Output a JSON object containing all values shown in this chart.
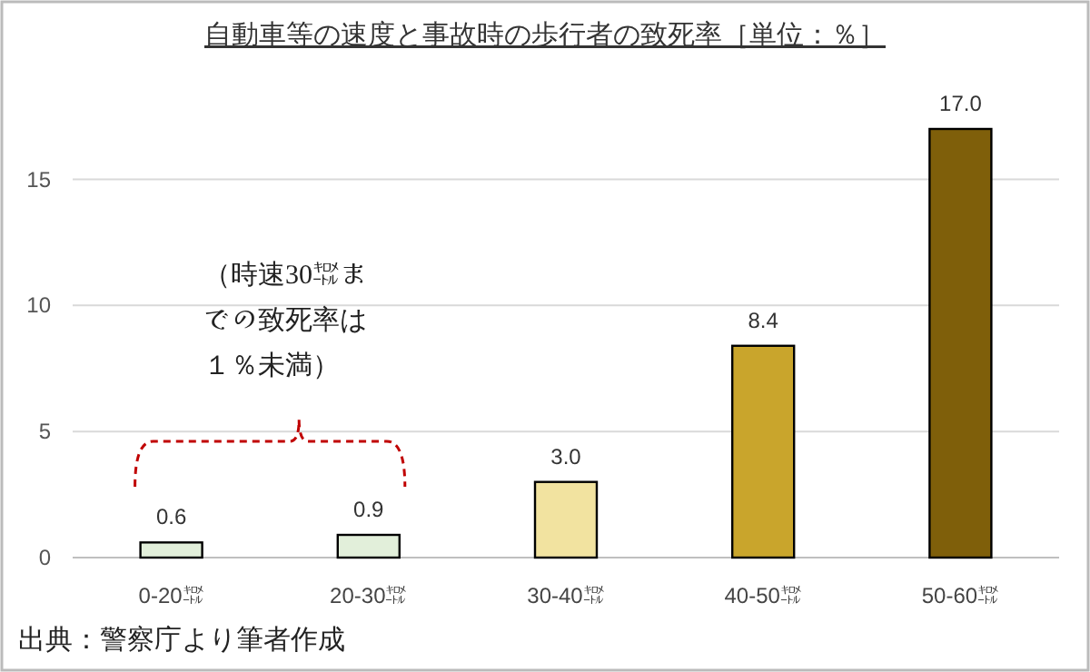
{
  "chart_data": {
    "type": "bar",
    "title": "自動車等の速度と事故時の歩行者の致死率［単位：％］",
    "categories": [
      "0-20㌖",
      "20-30㌖",
      "30-40㌖",
      "40-50㌖",
      "50-60㌖"
    ],
    "values": [
      0.6,
      0.9,
      3.0,
      8.4,
      17.0
    ],
    "value_labels": [
      "0.6",
      "0.9",
      "3.0",
      "8.4",
      "17.0"
    ],
    "colors": [
      "#e2efda",
      "#e2efda",
      "#f2e3a0",
      "#c9a52c",
      "#7f5f0a"
    ],
    "ylim": [
      0,
      17
    ],
    "yticks": [
      0,
      5,
      10,
      15
    ],
    "grid": "y",
    "annotations": [
      "（時速30㌖までの致死率は１％未満）",
      "出典：警察庁より筆者作成"
    ]
  }
}
